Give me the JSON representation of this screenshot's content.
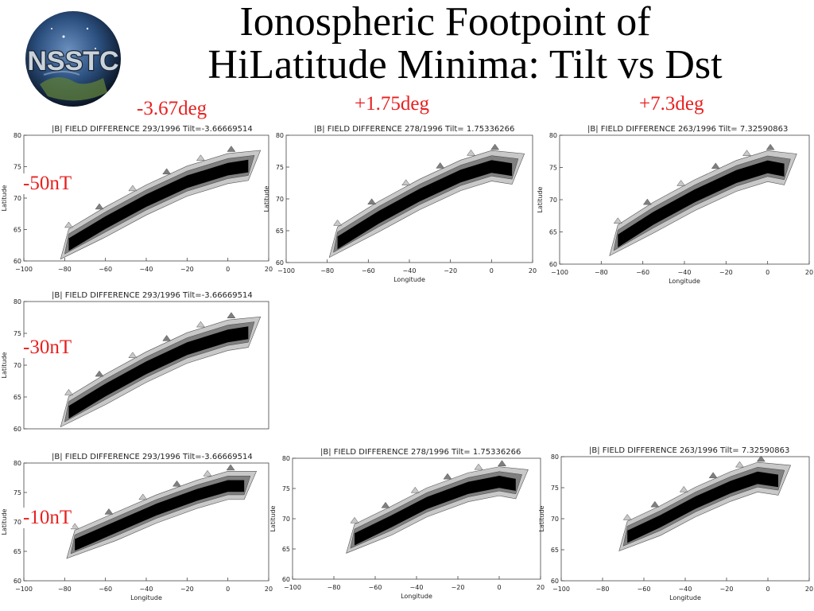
{
  "title": {
    "line1": "Ionospheric Footpoint of",
    "line2": "HiLatitude Minima: Tilt vs Dst"
  },
  "logo": {
    "text": "NSSTC"
  },
  "column_labels": [
    "-3.67deg",
    "+1.75deg",
    "+7.3deg"
  ],
  "row_labels": [
    "-50nT",
    "-30nT",
    "-10nT"
  ],
  "colors": {
    "label_red": "#e8201f",
    "level_outer": "#c8c8c8",
    "level_mid": "#7f7f7f",
    "level_core": "#000000"
  },
  "chart_data": [
    {
      "id": "r1c1",
      "type": "contour",
      "title": "|B| FIELD DIFFERENCE 293/1996 Tilt=-3.66669514",
      "xlabel": "",
      "ylabel": "Latitude",
      "xlim": [
        -100,
        20
      ],
      "ylim": [
        60,
        80
      ],
      "xticks": [
        "−100",
        "−80",
        "−60",
        "−40",
        "−20",
        "0",
        "20"
      ],
      "yticks": [
        "60",
        "65",
        "70",
        "75",
        "80"
      ],
      "band_centerline": [
        [
          -78,
          62.5
        ],
        [
          -60,
          66
        ],
        [
          -40,
          69.5
        ],
        [
          -20,
          72.5
        ],
        [
          0,
          74.5
        ],
        [
          10,
          75
        ]
      ]
    },
    {
      "id": "r1c2",
      "type": "contour",
      "title": "|B| FIELD DIFFERENCE 278/1996 Tilt= 1.75336266",
      "xlabel": "Longitude",
      "ylabel": "Latitude",
      "xlim": [
        -100,
        20
      ],
      "ylim": [
        60,
        80
      ],
      "xticks": [
        "−100",
        "−80",
        "−60",
        "−40",
        "−20",
        "0",
        "20"
      ],
      "yticks": [
        "60",
        "65",
        "70",
        "75",
        "80"
      ],
      "band_centerline": [
        [
          -75,
          63
        ],
        [
          -55,
          67
        ],
        [
          -35,
          70.5
        ],
        [
          -15,
          73.5
        ],
        [
          0,
          75
        ],
        [
          10,
          74.5
        ]
      ]
    },
    {
      "id": "r1c3",
      "type": "contour",
      "title": "|B| FIELD DIFFERENCE 263/1996 Tilt= 7.32590863",
      "xlabel": "Longitude",
      "ylabel": "Latitude",
      "xlim": [
        -100,
        20
      ],
      "ylim": [
        60,
        80
      ],
      "xticks": [
        "−100",
        "−80",
        "−60",
        "−40",
        "−20",
        "0",
        "20"
      ],
      "yticks": [
        "60",
        "65",
        "70",
        "75",
        "80"
      ],
      "band_centerline": [
        [
          -72,
          63.5
        ],
        [
          -55,
          67
        ],
        [
          -35,
          70.5
        ],
        [
          -15,
          73.5
        ],
        [
          0,
          75
        ],
        [
          8,
          74.5
        ]
      ]
    },
    {
      "id": "r2c1",
      "type": "contour",
      "title": "|B| FIELD DIFFERENCE 293/1996 Tilt=-3.66669514",
      "xlabel": "",
      "ylabel": "Latitude",
      "xlim": [
        -100,
        20
      ],
      "ylim": [
        60,
        80
      ],
      "xticks": [],
      "yticks": [
        "60",
        "65",
        "70",
        "75",
        "80"
      ],
      "band_centerline": [
        [
          -78,
          62.5
        ],
        [
          -60,
          66
        ],
        [
          -40,
          69.5
        ],
        [
          -20,
          72.5
        ],
        [
          0,
          74.5
        ],
        [
          10,
          75
        ]
      ]
    },
    {
      "id": "r3c1",
      "type": "contour",
      "title": "|B| FIELD DIFFERENCE 293/1996 Tilt=-3.66669514",
      "xlabel": "Longitude",
      "ylabel": "Latitude",
      "xlim": [
        -100,
        20
      ],
      "ylim": [
        60,
        80
      ],
      "xticks": [
        "−100",
        "−80",
        "−60",
        "−40",
        "−20",
        "0",
        "20"
      ],
      "yticks": [
        "60",
        "65",
        "70",
        "75",
        "80"
      ],
      "band_centerline": [
        [
          -75,
          66
        ],
        [
          -55,
          69
        ],
        [
          -35,
          72
        ],
        [
          -15,
          74.5
        ],
        [
          0,
          76
        ],
        [
          8,
          76
        ]
      ]
    },
    {
      "id": "r3c2",
      "type": "contour",
      "title": "|B| FIELD DIFFERENCE 278/1996 Tilt= 1.75336266",
      "xlabel": "Longitude",
      "ylabel": "Latitude",
      "xlim": [
        -100,
        20
      ],
      "ylim": [
        60,
        80
      ],
      "xticks": [
        "−100",
        "−80",
        "−60",
        "−40",
        "−20",
        "0",
        "20"
      ],
      "yticks": [
        "60",
        "65",
        "70",
        "75",
        "80"
      ],
      "band_centerline": [
        [
          -70,
          66.5
        ],
        [
          -52,
          69.5
        ],
        [
          -35,
          72.5
        ],
        [
          -15,
          75
        ],
        [
          0,
          76
        ],
        [
          8,
          75.5
        ]
      ]
    },
    {
      "id": "r3c3",
      "type": "contour",
      "title": "|B| FIELD DIFFERENCE 263/1996 Tilt= 7.32590863",
      "xlabel": "Longitude",
      "ylabel": "Latitude",
      "xlim": [
        -100,
        20
      ],
      "ylim": [
        60,
        80
      ],
      "xticks": [
        "−100",
        "−80",
        "−60",
        "−40",
        "−20",
        "0",
        "20"
      ],
      "yticks": [
        "60",
        "65",
        "70",
        "75",
        "80"
      ],
      "band_centerline": [
        [
          -68,
          67
        ],
        [
          -52,
          69.5
        ],
        [
          -35,
          72.5
        ],
        [
          -18,
          75
        ],
        [
          -5,
          76.5
        ],
        [
          5,
          76
        ]
      ]
    }
  ]
}
